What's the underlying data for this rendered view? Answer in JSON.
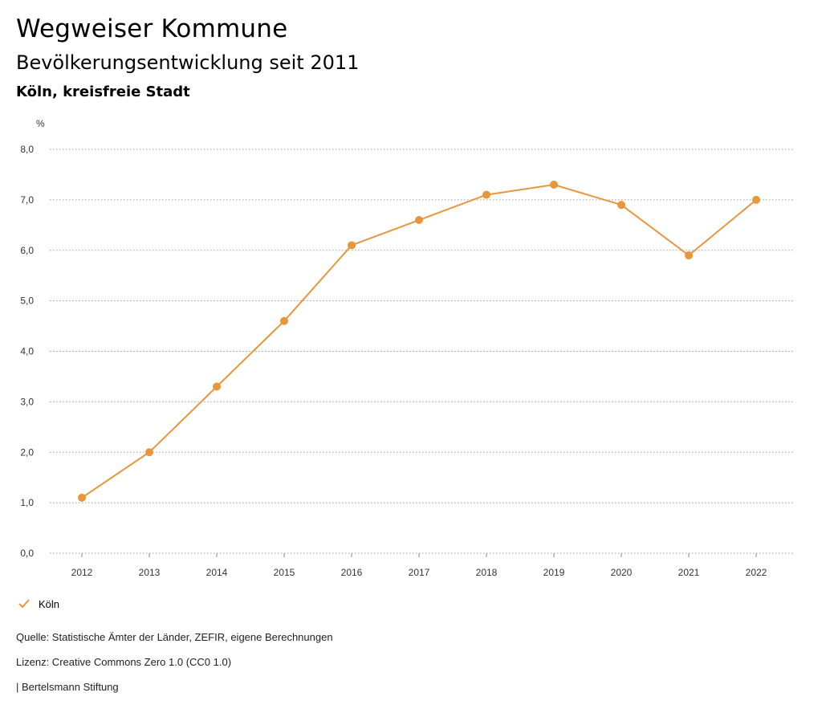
{
  "header": {
    "title": "Wegweiser Kommune",
    "subtitle": "Bevölkerungsentwicklung seit 2011",
    "region": "Köln, kreisfreie Stadt"
  },
  "chart_data": {
    "type": "line",
    "unit_label": "%",
    "x": [
      "2012",
      "2013",
      "2014",
      "2015",
      "2016",
      "2017",
      "2018",
      "2019",
      "2020",
      "2021",
      "2022"
    ],
    "series": [
      {
        "name": "Köln",
        "color": "#E8963A",
        "values": [
          1.1,
          2.0,
          3.3,
          4.6,
          6.1,
          6.6,
          7.1,
          7.3,
          6.9,
          5.9,
          7.0
        ]
      }
    ],
    "ylim": [
      0,
      8
    ],
    "yticks": [
      0,
      1,
      2,
      3,
      4,
      5,
      6,
      7,
      8
    ],
    "ytick_labels": [
      "0,0",
      "1,0",
      "2,0",
      "3,0",
      "4,0",
      "5,0",
      "6,0",
      "7,0",
      "8,0"
    ],
    "grid": true,
    "legend": "bottom-left"
  },
  "legend": {
    "label": "Köln"
  },
  "footer": {
    "source": "Quelle: Statistische Ämter der Länder, ZEFIR, eigene Berechnungen",
    "license": "Lizenz: Creative Commons Zero 1.0 (CC0 1.0)",
    "credit": "| Bertelsmann Stiftung"
  }
}
